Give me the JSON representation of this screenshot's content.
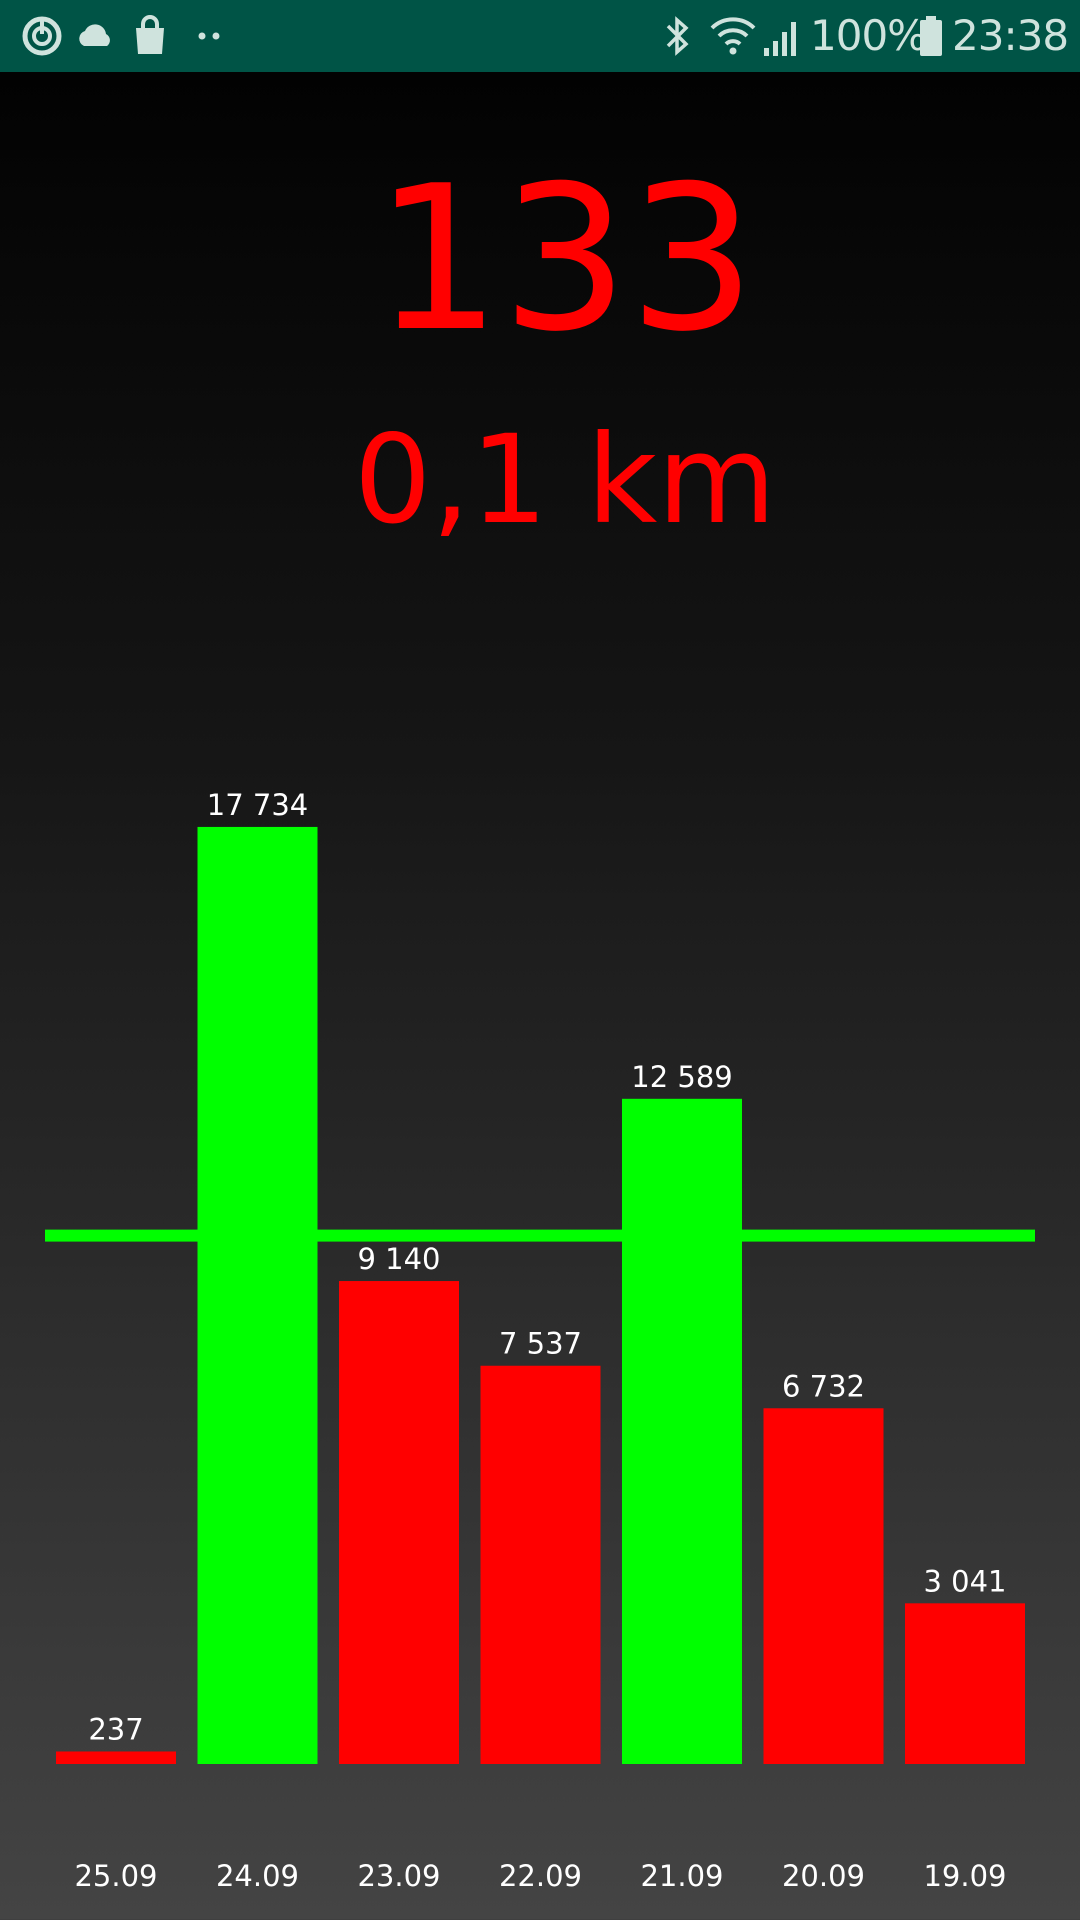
{
  "status_bar": {
    "battery_percent": "100%",
    "time": "23:38",
    "left_icons": [
      "sync-icon",
      "cloud-icon",
      "shopping-bag-icon",
      "more-dots-icon"
    ],
    "right_icons": [
      "bluetooth-icon",
      "wifi-icon",
      "signal-icon",
      "battery-icon"
    ]
  },
  "steps_today": "133",
  "distance_today": "0,1 km",
  "colors": {
    "status_bar": "#005446",
    "goal_met": "#00ff00",
    "goal_missed": "#ff0000",
    "goal_line": "#00ff00",
    "text": "#ffffff"
  },
  "chart_data": {
    "type": "bar",
    "categories": [
      "25.09",
      "24.09",
      "23.09",
      "22.09",
      "21.09",
      "20.09",
      "19.09"
    ],
    "values": [
      237,
      17734,
      9140,
      7537,
      12589,
      6732,
      3041
    ],
    "value_labels": [
      "237",
      "17 734",
      "9 140",
      "7 537",
      "12 589",
      "6 732",
      "3 041"
    ],
    "goal": 10000,
    "goal_line": true,
    "bar_colors": [
      "#ff0000",
      "#00ff00",
      "#ff0000",
      "#ff0000",
      "#00ff00",
      "#ff0000",
      "#ff0000"
    ],
    "title": "",
    "xlabel": "",
    "ylabel": "",
    "grid": false,
    "legend": false
  }
}
